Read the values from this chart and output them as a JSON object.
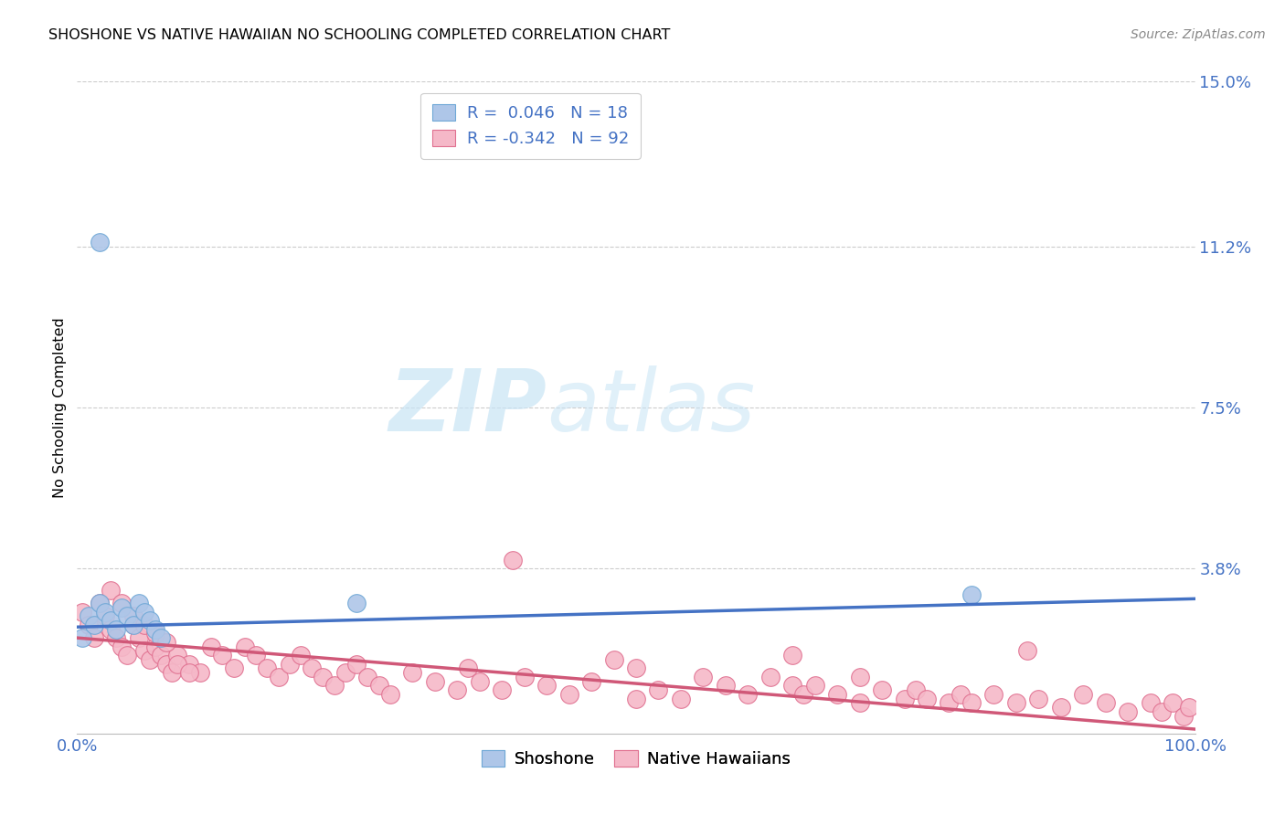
{
  "title": "SHOSHONE VS NATIVE HAWAIIAN NO SCHOOLING COMPLETED CORRELATION CHART",
  "source": "Source: ZipAtlas.com",
  "ylabel": "No Schooling Completed",
  "xlim": [
    0,
    1.0
  ],
  "ylim": [
    0,
    0.15
  ],
  "background_color": "#ffffff",
  "grid_color": "#cccccc",
  "shoshone_color": "#aec6e8",
  "shoshone_edge_color": "#6fa8d6",
  "native_hawaiian_color": "#f5b8c8",
  "native_hawaiian_edge_color": "#e07090",
  "blue_line_color": "#4472c4",
  "pink_line_color": "#d05878",
  "legend_label_1": "R =  0.046   N = 18",
  "legend_label_2": "R = -0.342   N = 92",
  "legend_bottom_1": "Shoshone",
  "legend_bottom_2": "Native Hawaiians",
  "watermark_zip": "ZIP",
  "watermark_atlas": "atlas",
  "blue_line_y0": 0.0245,
  "blue_line_y1": 0.031,
  "pink_line_y0": 0.022,
  "pink_line_y1": 0.001,
  "shoshone_points": [
    [
      0.005,
      0.022
    ],
    [
      0.01,
      0.027
    ],
    [
      0.015,
      0.025
    ],
    [
      0.02,
      0.03
    ],
    [
      0.025,
      0.028
    ],
    [
      0.03,
      0.026
    ],
    [
      0.035,
      0.024
    ],
    [
      0.04,
      0.029
    ],
    [
      0.045,
      0.027
    ],
    [
      0.05,
      0.025
    ],
    [
      0.055,
      0.03
    ],
    [
      0.06,
      0.028
    ],
    [
      0.065,
      0.026
    ],
    [
      0.07,
      0.024
    ],
    [
      0.075,
      0.022
    ],
    [
      0.25,
      0.03
    ],
    [
      0.8,
      0.032
    ],
    [
      0.02,
      0.113
    ]
  ],
  "native_hawaiian_points": [
    [
      0.005,
      0.028
    ],
    [
      0.01,
      0.025
    ],
    [
      0.015,
      0.022
    ],
    [
      0.02,
      0.03
    ],
    [
      0.025,
      0.027
    ],
    [
      0.03,
      0.024
    ],
    [
      0.035,
      0.022
    ],
    [
      0.04,
      0.02
    ],
    [
      0.045,
      0.018
    ],
    [
      0.05,
      0.025
    ],
    [
      0.055,
      0.022
    ],
    [
      0.06,
      0.019
    ],
    [
      0.065,
      0.017
    ],
    [
      0.07,
      0.02
    ],
    [
      0.075,
      0.018
    ],
    [
      0.08,
      0.016
    ],
    [
      0.085,
      0.014
    ],
    [
      0.09,
      0.018
    ],
    [
      0.1,
      0.016
    ],
    [
      0.11,
      0.014
    ],
    [
      0.12,
      0.02
    ],
    [
      0.13,
      0.018
    ],
    [
      0.14,
      0.015
    ],
    [
      0.15,
      0.02
    ],
    [
      0.16,
      0.018
    ],
    [
      0.17,
      0.015
    ],
    [
      0.18,
      0.013
    ],
    [
      0.19,
      0.016
    ],
    [
      0.2,
      0.018
    ],
    [
      0.21,
      0.015
    ],
    [
      0.22,
      0.013
    ],
    [
      0.23,
      0.011
    ],
    [
      0.24,
      0.014
    ],
    [
      0.25,
      0.016
    ],
    [
      0.26,
      0.013
    ],
    [
      0.27,
      0.011
    ],
    [
      0.28,
      0.009
    ],
    [
      0.3,
      0.014
    ],
    [
      0.32,
      0.012
    ],
    [
      0.34,
      0.01
    ],
    [
      0.35,
      0.015
    ],
    [
      0.36,
      0.012
    ],
    [
      0.38,
      0.01
    ],
    [
      0.39,
      0.04
    ],
    [
      0.4,
      0.013
    ],
    [
      0.42,
      0.011
    ],
    [
      0.44,
      0.009
    ],
    [
      0.46,
      0.012
    ],
    [
      0.48,
      0.017
    ],
    [
      0.5,
      0.015
    ],
    [
      0.5,
      0.008
    ],
    [
      0.52,
      0.01
    ],
    [
      0.54,
      0.008
    ],
    [
      0.56,
      0.013
    ],
    [
      0.58,
      0.011
    ],
    [
      0.6,
      0.009
    ],
    [
      0.62,
      0.013
    ],
    [
      0.64,
      0.011
    ],
    [
      0.64,
      0.018
    ],
    [
      0.65,
      0.009
    ],
    [
      0.66,
      0.011
    ],
    [
      0.68,
      0.009
    ],
    [
      0.7,
      0.007
    ],
    [
      0.7,
      0.013
    ],
    [
      0.72,
      0.01
    ],
    [
      0.74,
      0.008
    ],
    [
      0.75,
      0.01
    ],
    [
      0.76,
      0.008
    ],
    [
      0.78,
      0.007
    ],
    [
      0.79,
      0.009
    ],
    [
      0.8,
      0.007
    ],
    [
      0.82,
      0.009
    ],
    [
      0.84,
      0.007
    ],
    [
      0.85,
      0.019
    ],
    [
      0.86,
      0.008
    ],
    [
      0.88,
      0.006
    ],
    [
      0.9,
      0.009
    ],
    [
      0.92,
      0.007
    ],
    [
      0.94,
      0.005
    ],
    [
      0.96,
      0.007
    ],
    [
      0.97,
      0.005
    ],
    [
      0.98,
      0.007
    ],
    [
      0.99,
      0.004
    ],
    [
      0.995,
      0.006
    ],
    [
      0.03,
      0.033
    ],
    [
      0.04,
      0.03
    ],
    [
      0.05,
      0.027
    ],
    [
      0.06,
      0.025
    ],
    [
      0.07,
      0.023
    ],
    [
      0.08,
      0.021
    ],
    [
      0.09,
      0.016
    ],
    [
      0.1,
      0.014
    ]
  ]
}
